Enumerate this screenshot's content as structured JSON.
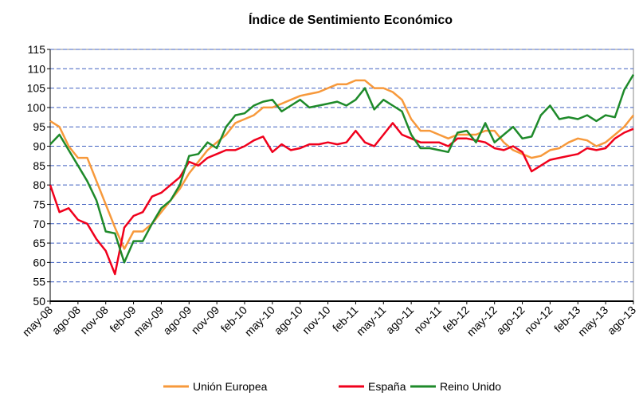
{
  "chart_data": {
    "type": "line",
    "title": "Índice de Sentimiento Económico",
    "categories": [
      "may-08",
      null,
      null,
      "ago-08",
      null,
      null,
      "nov-08",
      null,
      null,
      "feb-09",
      null,
      null,
      "may-09",
      null,
      null,
      "ago-09",
      null,
      null,
      "nov-09",
      null,
      null,
      "feb-10",
      null,
      null,
      "may-10",
      null,
      null,
      "ago-10",
      null,
      null,
      "nov-10",
      null,
      null,
      "feb-11",
      null,
      null,
      "may-11",
      null,
      null,
      "ago-11",
      null,
      null,
      "nov-11",
      null,
      null,
      "feb-12",
      null,
      null,
      "may-12",
      null,
      null,
      "ago-12",
      null,
      null,
      "nov-12",
      null,
      null,
      "feb-13",
      null,
      null,
      "may-13",
      null,
      null,
      "ago-13"
    ],
    "series": [
      {
        "name": "Unión Europea",
        "color": "#f7993b",
        "values": [
          96.5,
          95,
          90,
          87,
          87,
          81,
          75,
          69,
          63.5,
          68,
          68,
          70,
          73,
          76,
          79,
          83,
          86,
          89,
          91,
          93,
          96,
          97,
          98,
          100,
          100,
          101,
          102,
          103,
          103.5,
          104,
          105,
          106,
          106,
          107,
          107,
          105,
          105,
          104,
          102,
          97,
          94,
          94,
          93,
          92,
          93,
          93,
          93,
          94,
          94,
          91,
          89,
          88,
          87,
          87.5,
          89,
          89.5,
          91,
          92,
          91.5,
          90,
          91,
          93,
          95,
          98
        ]
      },
      {
        "name": "España",
        "color": "#f0001c",
        "values": [
          80,
          73,
          74,
          71,
          70,
          66,
          63,
          57,
          69,
          72,
          73,
          77,
          78,
          80,
          82,
          86,
          85,
          87,
          88,
          89,
          89,
          90,
          91.5,
          92.5,
          88.5,
          90.5,
          89,
          89.5,
          90.5,
          90.5,
          91,
          90.5,
          91,
          94,
          91,
          90,
          93,
          96,
          93,
          92,
          91,
          91,
          91,
          90,
          92,
          92,
          91.5,
          91,
          89.5,
          89,
          90,
          88.5,
          83.5,
          85,
          86.5,
          87,
          87.5,
          88,
          89.5,
          89,
          89.5,
          92,
          93.5,
          94.5
        ]
      },
      {
        "name": "Reino Unido",
        "color": "#1e8a2a",
        "values": [
          90.5,
          93,
          89,
          85,
          81,
          76,
          68,
          67.5,
          60,
          65.5,
          65.5,
          70,
          74,
          76,
          80,
          87.5,
          88,
          91,
          89.5,
          95,
          98,
          98.5,
          100.5,
          101.5,
          102,
          99,
          100.5,
          102,
          100,
          100.5,
          101,
          101.5,
          100.5,
          102,
          105,
          99.5,
          102,
          100.5,
          99,
          93,
          89.5,
          89.5,
          89,
          88.5,
          93.5,
          94,
          91,
          96,
          91,
          93,
          95,
          92,
          92.5,
          98,
          100.5,
          97,
          97.5,
          97,
          98,
          96.5,
          98,
          97.5,
          104.5,
          108.5
        ]
      }
    ],
    "ylim": [
      50,
      115
    ],
    "yticks": [
      50,
      55,
      60,
      65,
      70,
      75,
      80,
      85,
      90,
      95,
      100,
      105,
      110,
      115
    ],
    "grid": true,
    "legend": "bottom"
  }
}
